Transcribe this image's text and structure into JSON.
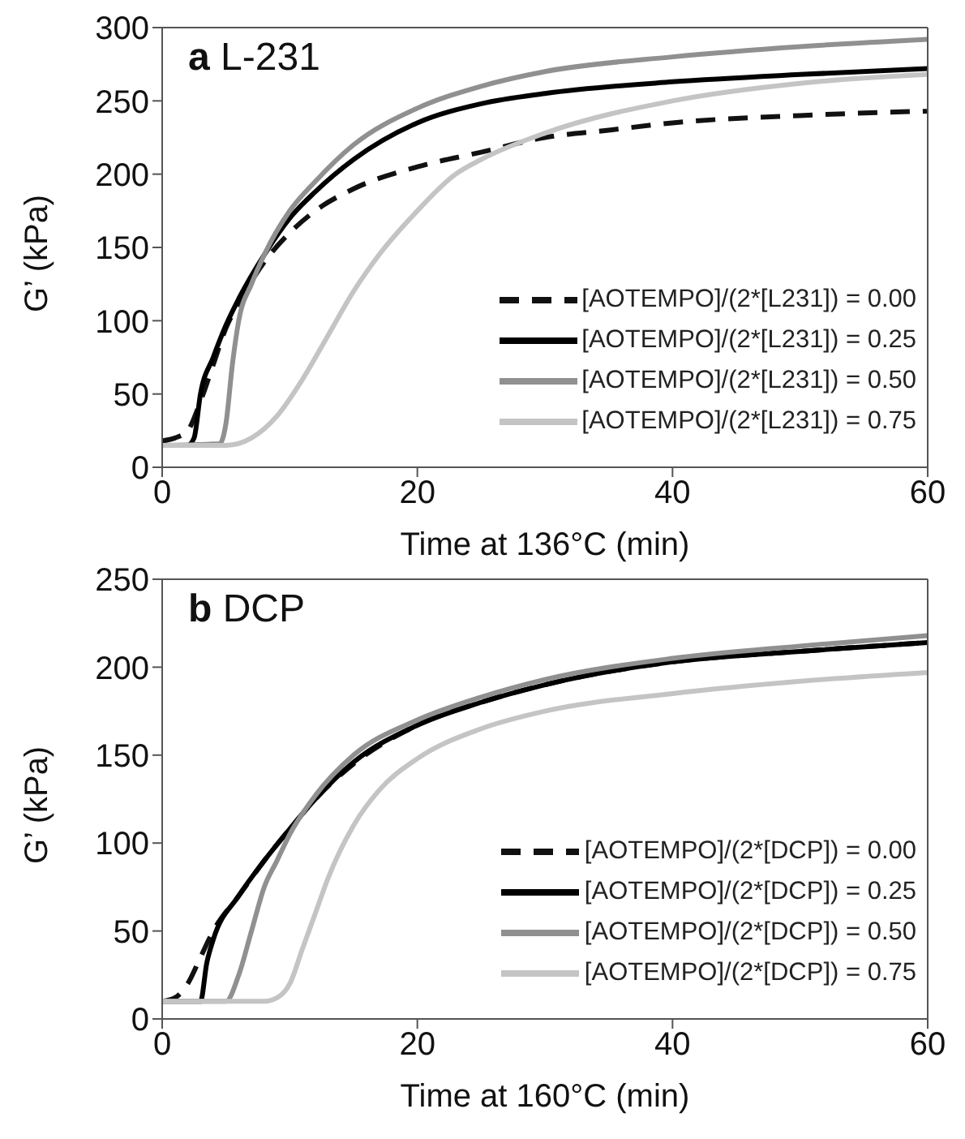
{
  "chart_data": [
    {
      "type": "line",
      "title": "a L-231",
      "xlabel": "Time at 136°C (min)",
      "ylabel": "G’ (kPa)",
      "xlim": [
        0,
        60
      ],
      "xticks": [
        0,
        20,
        40,
        60
      ],
      "ylim": [
        0,
        300
      ],
      "yticks": [
        0,
        50,
        100,
        150,
        200,
        250,
        300
      ],
      "legend": "bottom right",
      "marker": "none",
      "series": [
        {
          "name": "[AOTEMPO]/(2*[L231]) = 0.00",
          "color": "#111111",
          "line_style": "dashed",
          "x": [
            0,
            1,
            2,
            3,
            4,
            5,
            6,
            8,
            10,
            12,
            15,
            20,
            25,
            30,
            35,
            40,
            50,
            60
          ],
          "values": [
            18,
            20,
            25,
            45,
            70,
            95,
            112,
            140,
            160,
            175,
            190,
            205,
            215,
            225,
            230,
            235,
            240,
            243
          ]
        },
        {
          "name": "[AOTEMPO]/(2*[L231]) = 0.25",
          "color": "#000000",
          "line_style": "solid",
          "x": [
            0,
            2,
            2.5,
            3,
            4,
            5,
            6,
            8,
            10,
            12,
            15,
            20,
            25,
            30,
            40,
            50,
            60
          ],
          "values": [
            15,
            15,
            20,
            50,
            75,
            97,
            115,
            145,
            170,
            188,
            210,
            235,
            248,
            255,
            263,
            268,
            272
          ]
        },
        {
          "name": "[AOTEMPO]/(2*[L231]) = 0.50",
          "color": "#909090",
          "line_style": "solid",
          "x": [
            0,
            4.5,
            5,
            5.5,
            6,
            7,
            8,
            10,
            12,
            15,
            20,
            25,
            30,
            40,
            50,
            60
          ],
          "values": [
            15,
            16,
            30,
            70,
            100,
            125,
            145,
            175,
            195,
            220,
            245,
            260,
            270,
            280,
            287,
            292
          ]
        },
        {
          "name": "[AOTEMPO]/(2*[L231]) = 0.75",
          "color": "#c4c4c4",
          "line_style": "solid",
          "x": [
            0,
            5,
            7,
            9,
            11,
            13,
            15,
            17,
            20,
            23,
            25,
            30,
            40,
            50,
            60
          ],
          "values": [
            15,
            15,
            20,
            35,
            60,
            90,
            120,
            145,
            175,
            200,
            210,
            228,
            250,
            262,
            268
          ]
        }
      ]
    },
    {
      "type": "line",
      "title": "b DCP",
      "xlabel": "Time at 160°C (min)",
      "ylabel": "G’ (kPa)",
      "xlim": [
        0,
        60
      ],
      "xticks": [
        0,
        20,
        40,
        60
      ],
      "ylim": [
        0,
        250
      ],
      "yticks": [
        0,
        50,
        100,
        150,
        200,
        250
      ],
      "legend": "bottom right",
      "marker": "none",
      "series": [
        {
          "name": "[AOTEMPO]/(2*[DCP]) = 0.00",
          "color": "#111111",
          "line_style": "dashed",
          "x": [
            0,
            1,
            2,
            3,
            4,
            6,
            8,
            10,
            12,
            15,
            20,
            25,
            30,
            40,
            50,
            60
          ],
          "values": [
            10,
            12,
            20,
            35,
            50,
            70,
            90,
            108,
            125,
            145,
            167,
            180,
            190,
            203,
            209,
            214
          ]
        },
        {
          "name": "[AOTEMPO]/(2*[DCP]) = 0.25",
          "color": "#000000",
          "line_style": "solid",
          "x": [
            0,
            3,
            3.5,
            4,
            6,
            8,
            10,
            12,
            15,
            20,
            25,
            30,
            40,
            50,
            60
          ],
          "values": [
            10,
            10,
            32,
            45,
            70,
            90,
            108,
            125,
            146,
            167,
            180,
            190,
            203,
            209,
            214
          ]
        },
        {
          "name": "[AOTEMPO]/(2*[DCP]) = 0.50",
          "color": "#909090",
          "line_style": "solid",
          "x": [
            0,
            5,
            6,
            7,
            8,
            9,
            10,
            12,
            15,
            20,
            25,
            30,
            40,
            50,
            60
          ],
          "values": [
            10,
            10,
            25,
            50,
            75,
            90,
            105,
            127,
            150,
            170,
            183,
            193,
            205,
            212,
            218
          ]
        },
        {
          "name": "[AOTEMPO]/(2*[DCP]) = 0.75",
          "color": "#c4c4c4",
          "line_style": "solid",
          "x": [
            0,
            8,
            9,
            10,
            11,
            12,
            13,
            15,
            17,
            20,
            25,
            30,
            40,
            50,
            60
          ],
          "values": [
            10,
            10,
            12,
            20,
            40,
            60,
            80,
            110,
            130,
            148,
            165,
            175,
            185,
            192,
            197
          ]
        }
      ]
    }
  ]
}
